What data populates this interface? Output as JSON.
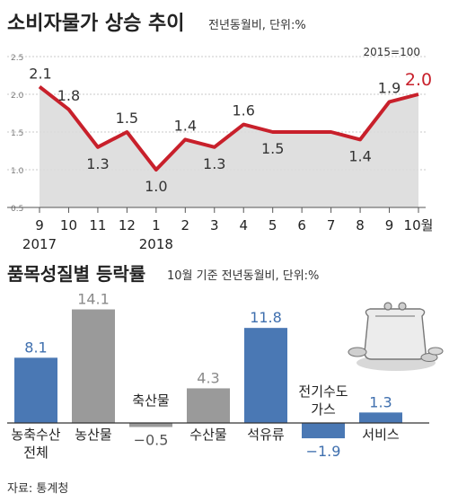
{
  "source_label": "자료: 통계청",
  "chart_data": [
    {
      "type": "line",
      "title": "소비자물가 상승 추이",
      "subtitle": "전년동월비, 단위:%",
      "base_note": "2015=100",
      "x": [
        "9",
        "10",
        "11",
        "12",
        "1",
        "2",
        "3",
        "4",
        "5",
        "6",
        "7",
        "8",
        "9",
        "10월"
      ],
      "year_labels": [
        {
          "at": 0,
          "text": "2017"
        },
        {
          "at": 4,
          "text": "2018"
        }
      ],
      "values": [
        2.1,
        1.8,
        1.3,
        1.5,
        1.0,
        1.4,
        1.3,
        1.6,
        1.5,
        1.5,
        1.5,
        1.4,
        1.9,
        2.0
      ],
      "value_labels": [
        "2.1",
        "1.8",
        "1.3",
        "1.5",
        "1.0",
        "1.4",
        "1.3",
        "1.6",
        "1.5",
        "",
        "",
        "1.4",
        "1.9",
        "2.0"
      ],
      "y_ticks": [
        "2.5",
        "2.0",
        "1.5",
        "1.0",
        "0.5"
      ],
      "ylim": [
        0.5,
        2.5
      ],
      "grid": true,
      "colors": {
        "line": "#c8202b",
        "area": "#dcdcdc",
        "highlight": "#c8202b"
      }
    },
    {
      "type": "bar",
      "title": "품목성질별 등락률",
      "subtitle": "10월 기준 전년동월비, 단위:%",
      "categories": [
        "농축수산 전체",
        "농산물",
        "축산물",
        "수산물",
        "석유류",
        "전기수도 가스",
        "서비스"
      ],
      "category_lines": [
        [
          "농축수산",
          "전체"
        ],
        [
          "농산물"
        ],
        [
          "축산물"
        ],
        [
          "수산물"
        ],
        [
          "석유류"
        ],
        [
          "전기수도",
          "가스"
        ],
        [
          "서비스"
        ]
      ],
      "values": [
        8.1,
        14.1,
        -0.5,
        4.3,
        11.8,
        -1.9,
        1.3
      ],
      "value_labels": [
        "8.1",
        "14.1",
        "−0.5",
        "4.3",
        "11.8",
        "−1.9",
        "1.3"
      ],
      "bar_colors": [
        "#4a78b4",
        "#9a9a9a",
        "#9a9a9a",
        "#9a9a9a",
        "#4a78b4",
        "#4a78b4",
        "#4a78b4"
      ],
      "label_colors": [
        "#3f6fae",
        "#8a8a8a",
        "#555555",
        "#8a8a8a",
        "#3f6fae",
        "#3f6fae",
        "#3f6fae"
      ]
    }
  ]
}
